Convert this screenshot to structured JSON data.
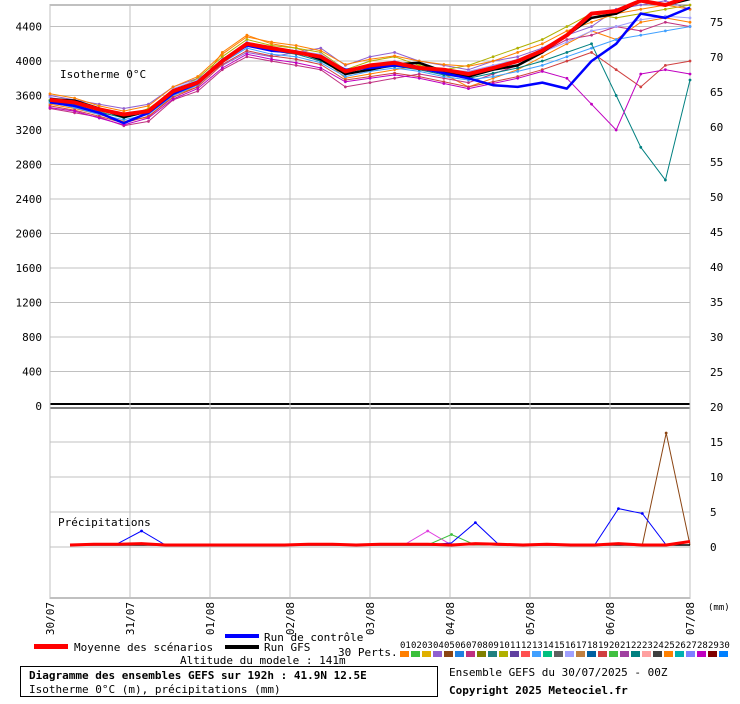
{
  "chart_data": {
    "type": "line",
    "top_panel": {
      "label": "Isotherme 0°C",
      "left_ticks": [
        "4400",
        "4000",
        "3600",
        "3200",
        "2800",
        "2400",
        "2000",
        "1600",
        "1200",
        "800",
        "400",
        "0"
      ],
      "right_ticks": [
        "75",
        "70",
        "65",
        "60",
        "55",
        "50",
        "45",
        "40",
        "35",
        "30",
        "25",
        "20"
      ],
      "ylim": [
        0,
        4650
      ],
      "dates": [
        "30/07",
        "31/07",
        "01/08",
        "02/08",
        "03/08",
        "04/08",
        "05/08",
        "06/08",
        "07/08"
      ],
      "mean": [
        3550,
        3520,
        3440,
        3380,
        3420,
        3650,
        3750,
        4000,
        4200,
        4150,
        4100,
        4050,
        3880,
        3950,
        3980,
        3920,
        3900,
        3850,
        3920,
        4000,
        4120,
        4300,
        4550,
        4580,
        4700,
        4650,
        4750
      ],
      "control": [
        3520,
        3480,
        3400,
        3280,
        3400,
        3620,
        3740,
        4000,
        4180,
        4120,
        4100,
        4040,
        3900,
        3920,
        3950,
        3920,
        3860,
        3800,
        3720,
        3700,
        3750,
        3680,
        4000,
        4200,
        4550,
        4500,
        4620
      ],
      "gfs": [
        3560,
        3540,
        3450,
        3350,
        3420,
        3660,
        3760,
        4010,
        4200,
        4150,
        4110,
        4020,
        3850,
        3900,
        3960,
        3980,
        3880,
        3820,
        3900,
        3950,
        4100,
        4300,
        4500,
        4550,
        4700,
        4650,
        4720
      ],
      "perts": [
        [
          3500,
          3450,
          3380,
          3300,
          3350,
          3600,
          3700,
          4100,
          4300,
          4200,
          4150,
          4050,
          3800,
          3850,
          3900,
          3950,
          3850,
          3700,
          3800,
          3900,
          4050,
          4200,
          4350,
          4250,
          4450,
          4500,
          4450
        ],
        [
          3600,
          3550,
          3500,
          3450,
          3500,
          3700,
          3800,
          3950,
          4100,
          4050,
          4100,
          4150,
          3950,
          4050,
          4100,
          4000,
          3950,
          3900,
          4000,
          4050,
          4150,
          4300,
          4400,
          4600,
          4650,
          4700,
          4600
        ],
        [
          3450,
          3400,
          3350,
          3250,
          3300,
          3550,
          3650,
          3900,
          4050,
          4000,
          3950,
          3900,
          3700,
          3750,
          3800,
          3850,
          3800,
          3750,
          3850,
          3950,
          4100,
          4250,
          4300,
          4400,
          4350,
          4450,
          4400
        ],
        [
          3550,
          3500,
          3400,
          3350,
          3450,
          3650,
          3800,
          4050,
          4250,
          4180,
          4150,
          4100,
          3900,
          4000,
          4050,
          3950,
          3900,
          3950,
          4050,
          4150,
          4250,
          4400,
          4550,
          4500,
          4550,
          4600,
          4650
        ],
        [
          3520,
          3460,
          3380,
          3320,
          3380,
          3600,
          3720,
          3980,
          4150,
          4080,
          4050,
          3980,
          3820,
          3880,
          3920,
          3880,
          3820,
          3780,
          3820,
          3880,
          3950,
          4050,
          4150,
          4250,
          4300,
          4350,
          4400
        ],
        [
          3580,
          3520,
          3420,
          3380,
          3420,
          3680,
          3780,
          4020,
          4220,
          4150,
          4120,
          4080,
          3900,
          3950,
          4000,
          3920,
          3900,
          3880,
          3950,
          4020,
          4100,
          4220,
          4350,
          4400,
          4480,
          4520,
          4500
        ],
        [
          3480,
          3430,
          3360,
          3280,
          3360,
          3580,
          3700,
          3960,
          4120,
          4060,
          4020,
          3960,
          3780,
          3820,
          3860,
          3820,
          3760,
          3700,
          3760,
          3820,
          3900,
          4000,
          4100,
          3900,
          3700,
          3950,
          4000
        ],
        [
          3540,
          3490,
          3410,
          3340,
          3410,
          3630,
          3750,
          4000,
          4200,
          4120,
          4080,
          4000,
          3850,
          3900,
          3940,
          3900,
          3840,
          3800,
          3860,
          3920,
          4000,
          4100,
          4200,
          3600,
          3000,
          2620,
          3780
        ],
        [
          3620,
          3570,
          3480,
          3420,
          3480,
          3700,
          3820,
          4080,
          4280,
          4220,
          4180,
          4120,
          3960,
          4020,
          4060,
          4000,
          3960,
          3940,
          4000,
          4100,
          4200,
          4350,
          4450,
          4550,
          4600,
          4650,
          4600
        ],
        [
          3460,
          3420,
          3340,
          3260,
          3340,
          3560,
          3680,
          3920,
          4080,
          4020,
          3980,
          3920,
          3760,
          3800,
          3840,
          3800,
          3740,
          3680,
          3740,
          3800,
          3880,
          3800,
          3500,
          3200,
          3850,
          3900,
          3850
        ]
      ]
    },
    "bottom_panel": {
      "label": "Précipitations",
      "right_ticks": [
        "15",
        "10",
        "5",
        "0"
      ],
      "ylim": [
        0,
        17
      ],
      "mean": [
        0,
        0.1,
        0.1,
        0.2,
        0,
        0,
        0,
        0,
        0,
        0,
        0.1,
        0.1,
        0,
        0.1,
        0.1,
        0.1,
        0,
        0.2,
        0.1,
        0,
        0.1,
        0,
        0,
        0.2,
        0,
        0,
        0.5
      ],
      "control": [
        0,
        0,
        0.2,
        2,
        0,
        0,
        0,
        0,
        0,
        0,
        0,
        0,
        0,
        0,
        0,
        0,
        0.3,
        3.2,
        0,
        0,
        0,
        0,
        0,
        5.2,
        4.5,
        0,
        0
      ],
      "gfs": [
        0,
        0,
        0,
        0,
        0,
        0,
        0,
        0,
        0,
        0,
        0,
        0,
        0,
        0,
        0,
        0,
        0,
        0.1,
        0,
        0,
        0,
        0,
        0,
        0,
        0,
        0,
        0
      ],
      "perts": [
        [
          0,
          0,
          0,
          0.3,
          0,
          0,
          0,
          0,
          0,
          0,
          0,
          0,
          0,
          0,
          0,
          2,
          0,
          0,
          0,
          0,
          0,
          0,
          0,
          0,
          0,
          0,
          0
        ],
        [
          0,
          0,
          0,
          0,
          0,
          0,
          0,
          0,
          0,
          0,
          0,
          0,
          0,
          0,
          0,
          0,
          0,
          0,
          0,
          0,
          0,
          0,
          0,
          0,
          0,
          16,
          0
        ],
        [
          0,
          0,
          0,
          0,
          0,
          0,
          0,
          0,
          0,
          0,
          0,
          0,
          0,
          0,
          0,
          0,
          1.5,
          0,
          0,
          0,
          0,
          0,
          0,
          0,
          0,
          0,
          0
        ]
      ]
    }
  },
  "axis_unit_label": "(mm)",
  "legend": {
    "mean_label": "Moyenne des scénarios",
    "control_label": "Run de contrôle",
    "gfs_label": "Run GFS",
    "altitude_label": "Altitude du modele : 141m",
    "perts_label": "30 Perts.",
    "pert_numbers": [
      "01",
      "02",
      "03",
      "04",
      "05",
      "06",
      "07",
      "08",
      "09",
      "10",
      "11",
      "12",
      "13",
      "14",
      "15",
      "16",
      "17",
      "18",
      "19",
      "20",
      "21",
      "22",
      "23",
      "24",
      "25",
      "26",
      "27",
      "28",
      "29",
      "30"
    ]
  },
  "colors": {
    "mean": "#ff0000",
    "control": "#0000ff",
    "gfs": "#000000",
    "grid": "#c0c0c0",
    "perts": [
      "#ff7f00",
      "#3ac03a",
      "#e0b000",
      "#9060d0",
      "#8b4513",
      "#2080e0",
      "#c03080",
      "#808000",
      "#208080",
      "#b0b000",
      "#6040a0",
      "#ff5050",
      "#40a0ff",
      "#00c080",
      "#606060",
      "#a0a0ff",
      "#c08040",
      "#0060a0",
      "#d04040",
      "#40c040",
      "#a040a0",
      "#008080",
      "#ffa0a0",
      "#404040",
      "#ff8000",
      "#00b0b0",
      "#8080ff",
      "#c000c0",
      "#800000",
      "#0080ff"
    ]
  },
  "footer": {
    "title": "Diagramme des ensembles GEFS sur 192h : 41.9N 12.5E",
    "subtitle": "Isotherme 0°C (m), précipitations (mm)",
    "run": "Ensemble GEFS du 30/07/2025 - 00Z",
    "copyright": "Copyright 2025 Meteociel.fr"
  }
}
